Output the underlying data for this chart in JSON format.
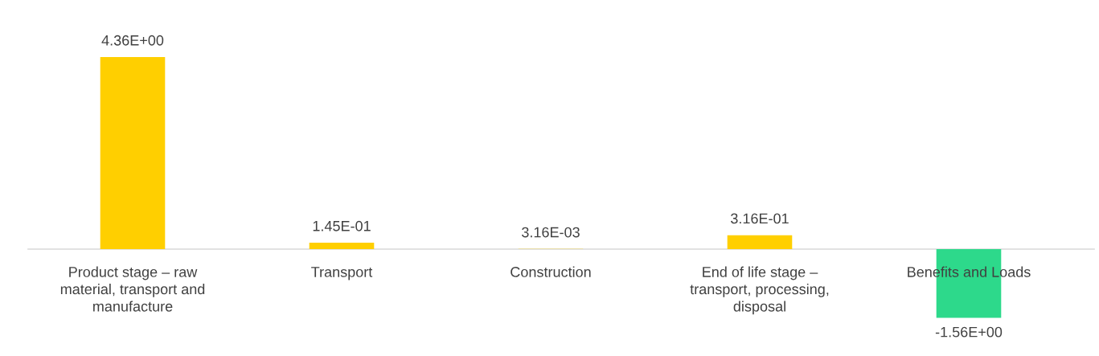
{
  "chart_data": {
    "type": "bar",
    "categories": [
      "Product stage – raw material, transport and manufacture",
      "Transport",
      "Construction",
      "End of life stage – transport, processing, disposal",
      "Benefits and Loads"
    ],
    "values": [
      4.36,
      0.145,
      0.00316,
      0.316,
      -1.56
    ],
    "colors": [
      "#ffcf00",
      "#ffcf00",
      "#ffcf00",
      "#ffcf00",
      "#2dd98b"
    ],
    "value_labels": [
      "4.36E+00",
      "1.45E-01",
      "3.16E-03",
      "3.16E-01",
      "-1.56E+00"
    ],
    "legend": false
  }
}
